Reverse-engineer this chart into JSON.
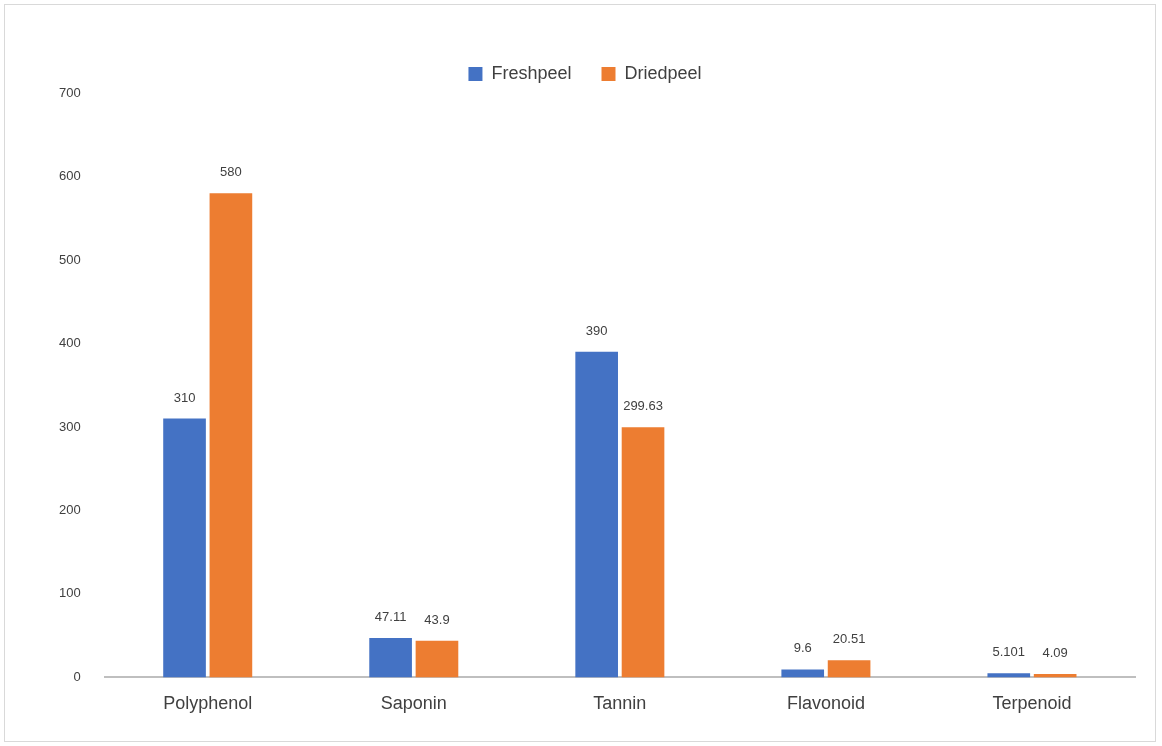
{
  "chart_data": {
    "type": "bar",
    "categories": [
      "Polyphenol",
      "Saponin",
      "Tannin",
      "Flavonoid",
      "Terpenoid"
    ],
    "series": [
      {
        "name": "Freshpeel",
        "color": "#4472c4",
        "values": [
          310,
          47.11,
          390,
          9.6,
          5.101
        ]
      },
      {
        "name": "Driedpeel",
        "color": "#ed7d31",
        "values": [
          580,
          43.9,
          299.63,
          20.51,
          4.09
        ]
      }
    ],
    "ylim": [
      0,
      700
    ],
    "yticks": [
      0,
      100,
      200,
      300,
      400,
      500,
      600,
      700
    ],
    "grid": false,
    "legend": "top",
    "data_labels": true
  }
}
